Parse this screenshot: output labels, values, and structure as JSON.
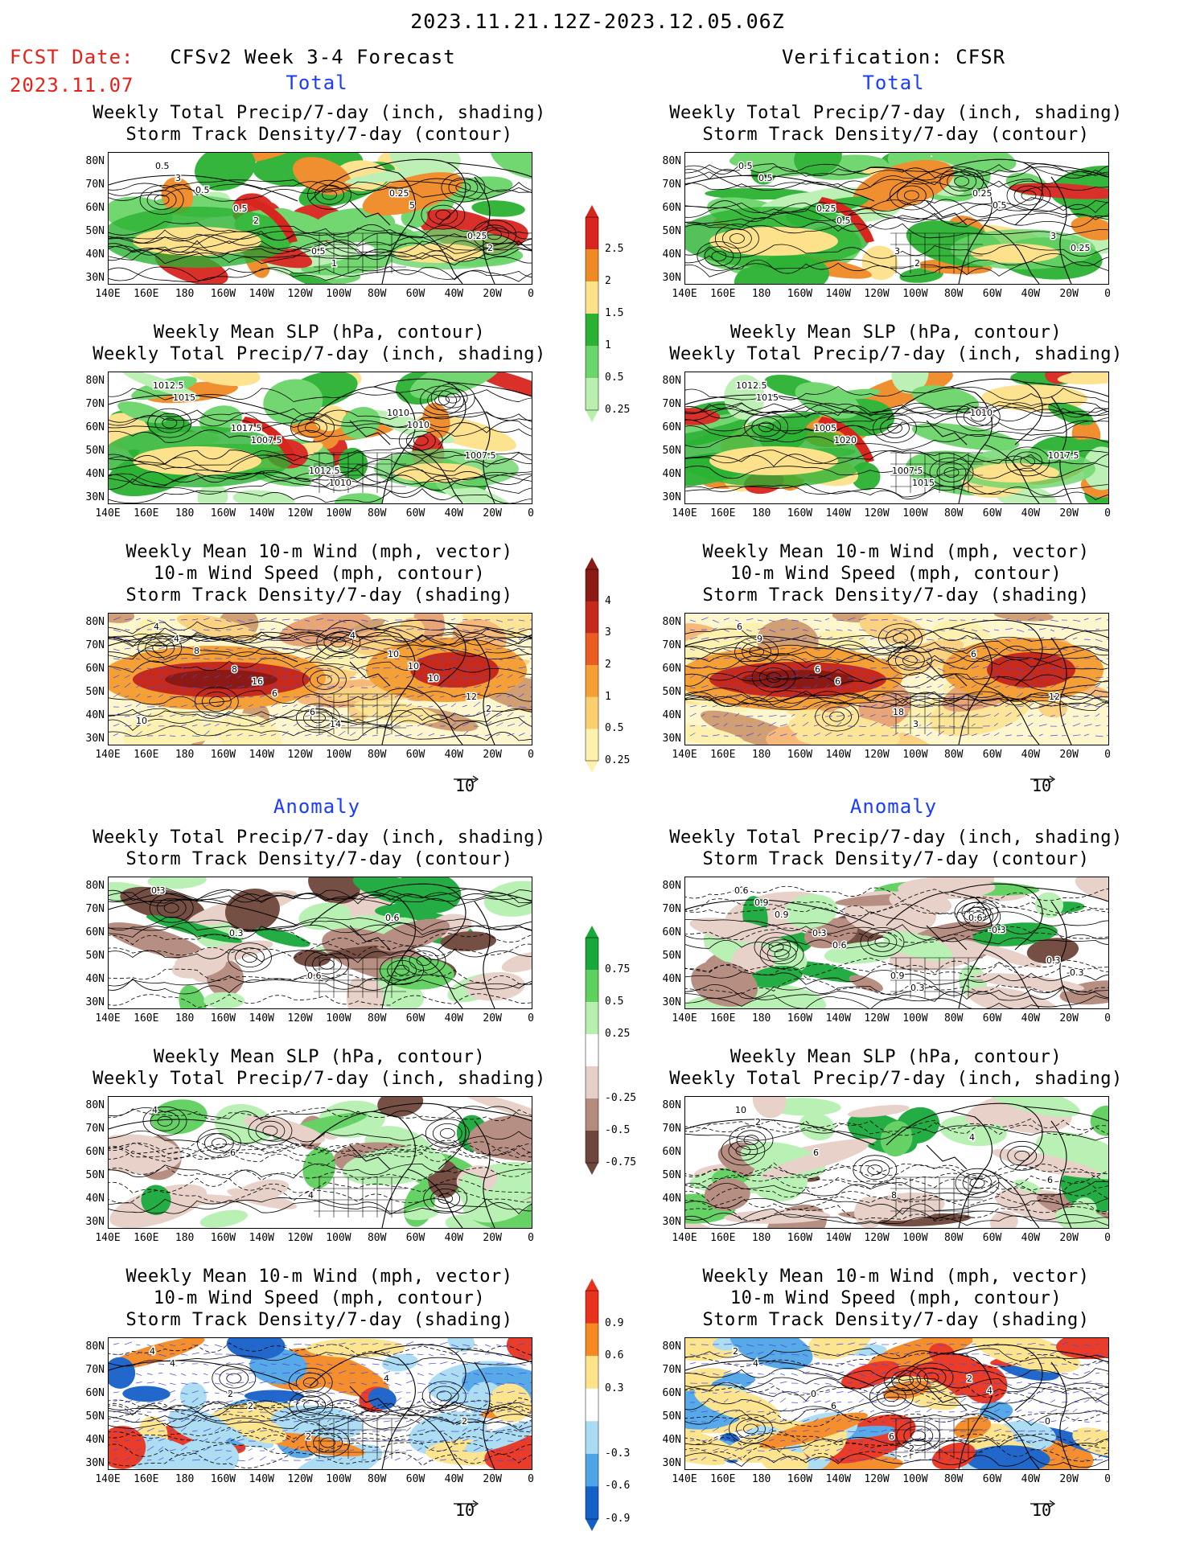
{
  "header": {
    "date_range": "2023.11.21.12Z-2023.12.05.06Z",
    "fcst_label": "FCST Date:",
    "fcst_date": "2023.11.07",
    "forecast_title": "CFSv2 Week 3-4 Forecast",
    "verification_title": "Verification: CFSR"
  },
  "sections": {
    "total": "Total",
    "anomaly": "Anomaly"
  },
  "panel_titles": {
    "precip_storm": [
      "Weekly Total Precip/7-day (inch, shading)",
      "Storm Track Density/7-day (contour)"
    ],
    "slp_precip": [
      "Weekly Mean SLP (hPa, contour)",
      "Weekly Total Precip/7-day (inch, shading)"
    ],
    "wind_storm": [
      "Weekly Mean 10-m Wind (mph, vector)",
      "10-m Wind Speed (mph, contour)",
      "Storm Track Density/7-day (shading)"
    ]
  },
  "axes": {
    "lat_labels": [
      "80N",
      "70N",
      "60N",
      "50N",
      "40N",
      "30N"
    ],
    "lon_labels": [
      "140E",
      "160E",
      "180",
      "160W",
      "140W",
      "120W",
      "100W",
      "80W",
      "60W",
      "40W",
      "20W",
      "0"
    ]
  },
  "vector_ref": "10",
  "colorbars": {
    "precip_total": {
      "labels": [
        "2.5",
        "2",
        "1.5",
        "1",
        "0.5",
        "0.25"
      ],
      "colors": [
        "#d7261e",
        "#f08a24",
        "#fde18b",
        "#2bb232",
        "#6bd46a",
        "#b9f0b0"
      ]
    },
    "storm_total": {
      "labels": [
        "4",
        "3",
        "2",
        "1",
        "0.5",
        "0.25"
      ],
      "colors": [
        "#8b1a14",
        "#c62a1c",
        "#ea5d20",
        "#f5a036",
        "#fbcf6d",
        "#fdf1ad"
      ]
    },
    "precip_anom": {
      "labels": [
        "0.75",
        "0.5",
        "0.25",
        "-0.25",
        "-0.5",
        "-0.75"
      ],
      "colors": [
        "#19a93b",
        "#5ed05d",
        "#b6f0b0",
        "#ffffff",
        "#e6cfc6",
        "#b48a7c",
        "#6f463b"
      ]
    },
    "storm_anom": {
      "labels": [
        "0.9",
        "0.6",
        "0.3",
        "-0.3",
        "-0.6",
        "-0.9"
      ],
      "colors": [
        "#e8321e",
        "#f58a22",
        "#fde38a",
        "#ffffff",
        "#a9dcf3",
        "#4ea5e6",
        "#1560c7"
      ]
    }
  },
  "contour_labels": {
    "f1": [
      "0.5",
      "0.5",
      "0.5",
      "0.25",
      "0.25",
      "3",
      "2",
      "1",
      "5",
      "2",
      "0.5"
    ],
    "v1": [
      "0.5",
      "0.25",
      "3",
      "0.25",
      "3",
      "0.5",
      "0.5",
      "2",
      "0.5",
      "0.25"
    ],
    "f2": [
      "1012.5",
      "1017.5",
      "1012.5",
      "1010",
      "1007.5",
      "1015",
      "1007.5",
      "1010",
      "1010"
    ],
    "v2": [
      "1012.5",
      "1005",
      "1007.5",
      "1010",
      "1017.5",
      "1015",
      "1020",
      "1015"
    ],
    "f3": [
      "4",
      "8",
      "6",
      "10",
      "12",
      "4",
      "16",
      "14",
      "10",
      "2",
      "8",
      "6",
      "4",
      "10",
      "10"
    ],
    "v3": [
      "6",
      "6",
      "18",
      "6",
      "12",
      "9",
      "6",
      "3"
    ],
    "f4": [
      "0.3",
      "0.3",
      "0.6",
      "0.6"
    ],
    "v4": [
      "0.6",
      "0.3",
      "0.9",
      "0.6",
      "0.3",
      "0.9",
      "0.6",
      "0.3",
      "-0.3",
      "-0.3",
      "0.9"
    ],
    "f5": [
      "4",
      "6",
      "4"
    ],
    "v5": [
      "10",
      "6",
      "8",
      "4",
      "6",
      "2"
    ],
    "f6": [
      "4",
      "2",
      "2",
      "4",
      "2",
      "4",
      "2"
    ],
    "v6": [
      "2",
      "0",
      "6",
      "2",
      "0",
      "4",
      "6",
      "2",
      "4"
    ]
  }
}
